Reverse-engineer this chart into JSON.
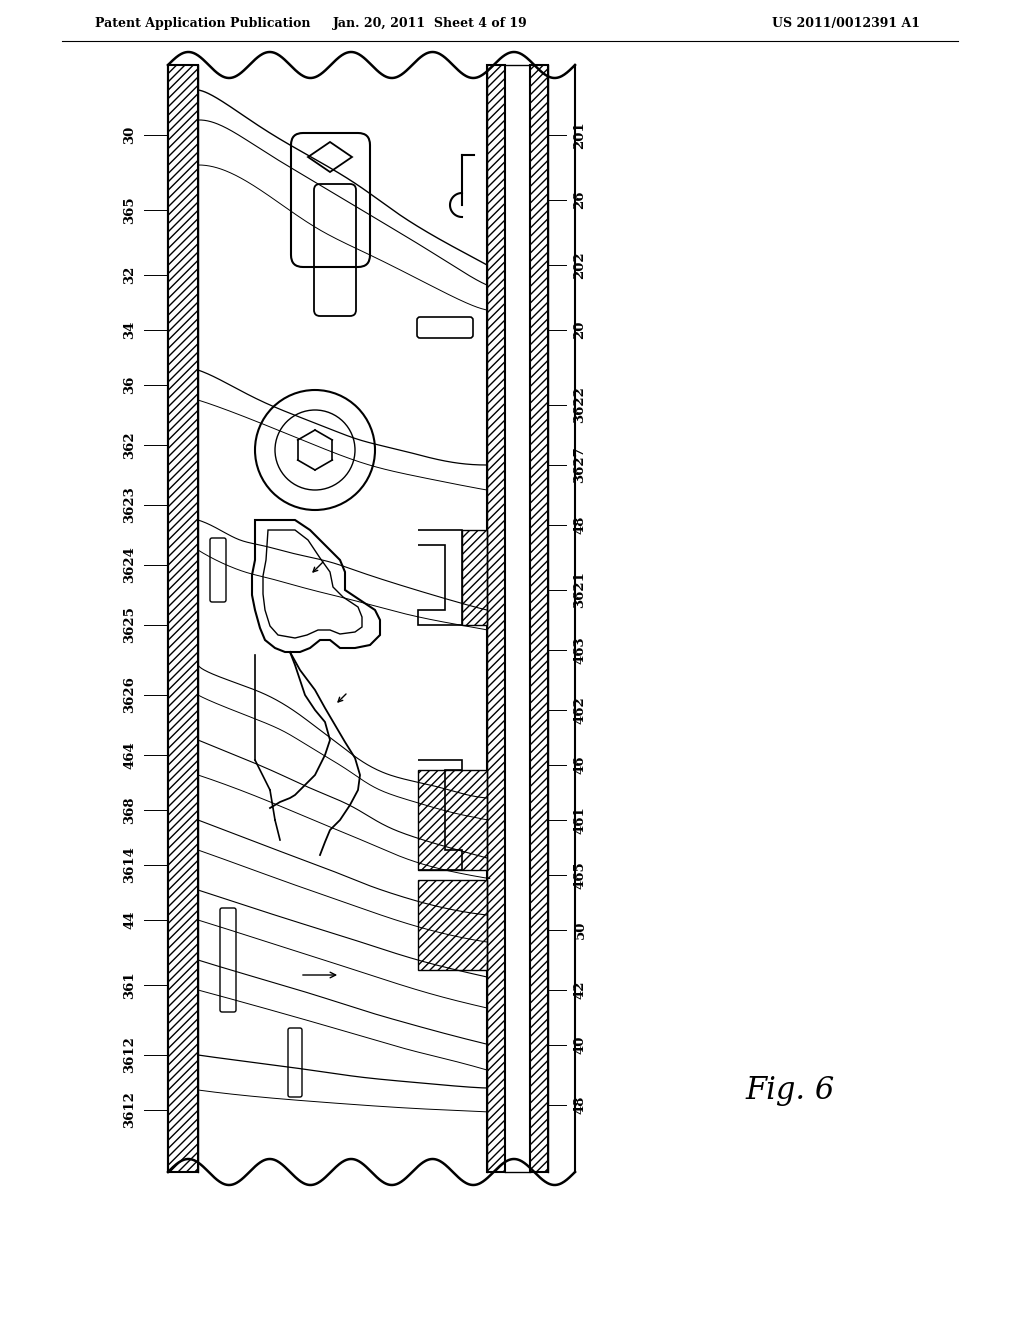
{
  "header_left": "Patent Application Publication",
  "header_center": "Jan. 20, 2011  Sheet 4 of 19",
  "header_right": "US 2011/0012391 A1",
  "figure_label": "Fig. 6",
  "bg": "#ffffff",
  "left_labels": [
    [
      "30",
      130,
      1185
    ],
    [
      "365",
      130,
      1110
    ],
    [
      "32",
      130,
      1045
    ],
    [
      "34",
      130,
      990
    ],
    [
      "36",
      130,
      935
    ],
    [
      "362",
      130,
      875
    ],
    [
      "3623",
      130,
      815
    ],
    [
      "3624",
      130,
      755
    ],
    [
      "3625",
      130,
      695
    ],
    [
      "3626",
      130,
      625
    ],
    [
      "464",
      130,
      565
    ],
    [
      "368",
      130,
      510
    ],
    [
      "3614",
      130,
      455
    ],
    [
      "44",
      130,
      400
    ],
    [
      "361",
      130,
      335
    ],
    [
      "3612",
      130,
      265
    ],
    [
      "3612",
      130,
      210
    ]
  ],
  "right_labels": [
    [
      "201",
      580,
      1185
    ],
    [
      "26",
      580,
      1120
    ],
    [
      "202",
      580,
      1055
    ],
    [
      "20",
      580,
      990
    ],
    [
      "3622",
      580,
      915
    ],
    [
      "3627",
      580,
      855
    ],
    [
      "48",
      580,
      795
    ],
    [
      "3621",
      580,
      730
    ],
    [
      "463",
      580,
      670
    ],
    [
      "462",
      580,
      610
    ],
    [
      "46",
      580,
      555
    ],
    [
      "461",
      580,
      500
    ],
    [
      "465",
      580,
      445
    ],
    [
      "50",
      580,
      390
    ],
    [
      "42",
      580,
      330
    ],
    [
      "40",
      580,
      275
    ],
    [
      "48",
      580,
      215
    ]
  ]
}
